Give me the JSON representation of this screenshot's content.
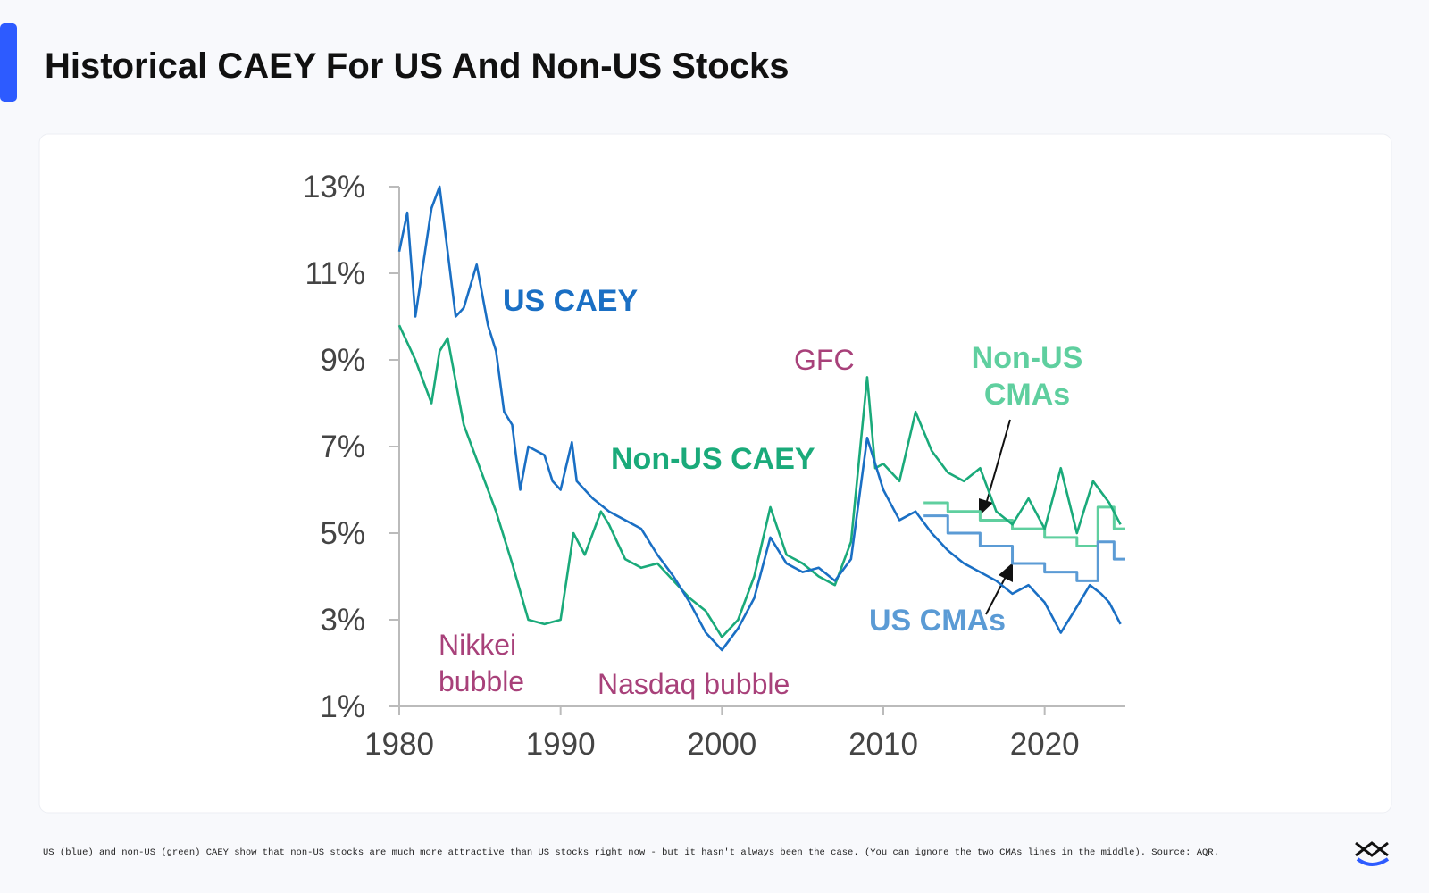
{
  "header": {
    "title": "Historical CAEY For US And Non-US Stocks"
  },
  "caption": "US (blue) and non-US (green) CAEY show that non-US stocks are much more attractive than US stocks right now - but it hasn't always been the case. (You can ignore the two CMAs lines in the middle). Source: AQR.",
  "chart_data": {
    "type": "line",
    "xlim": [
      1980,
      2025
    ],
    "xticks": [
      1980,
      1990,
      2000,
      2010,
      2020
    ],
    "ylim": [
      1,
      13
    ],
    "yticks": [
      {
        "value": 1,
        "label": "1%"
      },
      {
        "value": 3,
        "label": "3%"
      },
      {
        "value": 5,
        "label": "5%"
      },
      {
        "value": 7,
        "label": "7%"
      },
      {
        "value": 9,
        "label": "9%"
      },
      {
        "value": 11,
        "label": "11%"
      },
      {
        "value": 13,
        "label": "13%"
      }
    ],
    "series": [
      {
        "name": "US CAEY",
        "color": "#1a6fc4",
        "step": false,
        "x": [
          1980,
          1980.5,
          1981,
          1982,
          1982.5,
          1983,
          1983.5,
          1984,
          1984.8,
          1985.5,
          1986,
          1986.5,
          1987,
          1987.5,
          1988,
          1989,
          1989.5,
          1990,
          1990.7,
          1991,
          1992,
          1993,
          1994,
          1995,
          1996,
          1997,
          1998,
          1999,
          2000,
          2001,
          2002,
          2003,
          2004,
          2005,
          2006,
          2007,
          2008,
          2009,
          2010,
          2011,
          2012,
          2013,
          2014,
          2015,
          2016,
          2017,
          2018,
          2019,
          2020,
          2021,
          2022,
          2022.8,
          2023.5,
          2024,
          2024.7
        ],
        "values": [
          11.5,
          12.4,
          10.0,
          12.5,
          13,
          11.5,
          10,
          10.2,
          11.2,
          9.8,
          9.2,
          7.8,
          7.5,
          6.0,
          7.0,
          6.8,
          6.2,
          6.0,
          7.1,
          6.2,
          5.8,
          5.5,
          5.3,
          5.1,
          4.5,
          4.0,
          3.4,
          2.7,
          2.3,
          2.8,
          3.5,
          4.9,
          4.3,
          4.1,
          4.2,
          3.9,
          4.4,
          7.2,
          6.0,
          5.3,
          5.5,
          5.0,
          4.6,
          4.3,
          4.1,
          3.9,
          3.6,
          3.8,
          3.4,
          2.7,
          3.3,
          3.8,
          3.6,
          3.4,
          2.9
        ]
      },
      {
        "name": "Non-US CAEY",
        "color": "#1aaa7a",
        "step": false,
        "x": [
          1980,
          1981,
          1982,
          1982.5,
          1983,
          1984,
          1985,
          1986,
          1987,
          1988,
          1989,
          1990,
          1990.8,
          1991.5,
          1992.5,
          1993,
          1994,
          1995,
          1996,
          1997,
          1998,
          1999,
          2000,
          2001,
          2002,
          2003,
          2004,
          2005,
          2006,
          2007,
          2008,
          2009,
          2009.5,
          2010,
          2011,
          2012,
          2013,
          2014,
          2015,
          2016,
          2017,
          2018,
          2019,
          2020,
          2021,
          2022,
          2023,
          2024,
          2024.7
        ],
        "values": [
          9.8,
          9.0,
          8.0,
          9.2,
          9.5,
          7.5,
          6.5,
          5.5,
          4.3,
          3.0,
          2.9,
          3.0,
          5.0,
          4.5,
          5.5,
          5.2,
          4.4,
          4.2,
          4.3,
          3.9,
          3.5,
          3.2,
          2.6,
          3.0,
          4.0,
          5.6,
          4.5,
          4.3,
          4.0,
          3.8,
          4.8,
          8.6,
          6.5,
          6.6,
          6.2,
          7.8,
          6.9,
          6.4,
          6.2,
          6.5,
          5.5,
          5.2,
          5.8,
          5.1,
          6.5,
          5.0,
          6.2,
          5.7,
          5.2
        ]
      },
      {
        "name": "US CMAs",
        "color": "#5b9bd5",
        "step": true,
        "x": [
          2012.5,
          2014,
          2016,
          2018,
          2020,
          2022,
          2023.3,
          2024.3,
          2025
        ],
        "values": [
          5.4,
          5.0,
          4.7,
          4.3,
          4.1,
          3.9,
          4.8,
          4.4,
          4.4
        ]
      },
      {
        "name": "Non-US CMAs",
        "color": "#5fcf9f",
        "step": true,
        "x": [
          2012.5,
          2014,
          2016,
          2018,
          2020,
          2022,
          2023.3,
          2024.3,
          2025
        ],
        "values": [
          5.7,
          5.5,
          5.3,
          5.1,
          4.9,
          4.7,
          5.6,
          5.1,
          5.1
        ]
      }
    ],
    "annotations": [
      [
        "GFC"
      ],
      [
        "Nikkei",
        "bubble"
      ],
      [
        "Nasdaq bubble"
      ]
    ]
  }
}
